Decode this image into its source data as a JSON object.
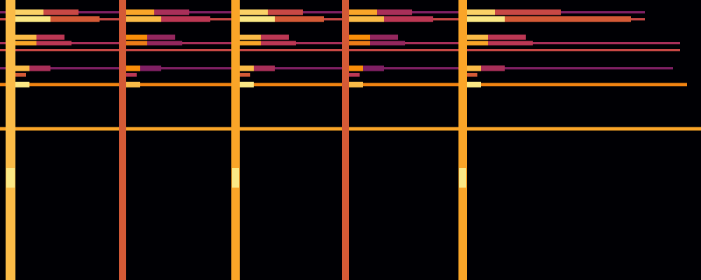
{
  "chart_data": {
    "type": "heatmap",
    "xlim": [
      0,
      100
    ],
    "ylim": [
      0,
      100
    ],
    "tick_labels": false,
    "color_range": [
      0,
      1
    ],
    "cells": [
      {
        "x0": 0,
        "x1": 100,
        "y0": 53.4,
        "y1": 54.6,
        "value": 0.8
      },
      {
        "x0": 0,
        "x1": 98,
        "y0": 69.2,
        "y1": 70.4,
        "value": 0.72
      },
      {
        "x0": 0,
        "x1": 96,
        "y0": 75.2,
        "y1": 76.0,
        "value": 0.35
      },
      {
        "x0": 0,
        "x1": 97,
        "y0": 81.7,
        "y1": 82.5,
        "value": 0.55
      },
      {
        "x0": 0,
        "x1": 97,
        "y0": 84.2,
        "y1": 85.0,
        "value": 0.45
      },
      {
        "x0": 0,
        "x1": 92,
        "y0": 92.7,
        "y1": 93.5,
        "value": 0.55
      },
      {
        "x0": 0,
        "x1": 92,
        "y0": 95.2,
        "y1": 96.0,
        "value": 0.35
      },
      {
        "x0": 2.2,
        "x1": 6.2,
        "y0": 94.6,
        "y1": 96.6,
        "value": 0.9
      },
      {
        "x0": 6.2,
        "x1": 11.2,
        "y0": 94.6,
        "y1": 96.6,
        "value": 0.55
      },
      {
        "x0": 2.2,
        "x1": 7.2,
        "y0": 92.2,
        "y1": 94.2,
        "value": 0.95
      },
      {
        "x0": 7.2,
        "x1": 14.2,
        "y0": 92.2,
        "y1": 94.2,
        "value": 0.6
      },
      {
        "x0": 2.2,
        "x1": 5.2,
        "y0": 85.8,
        "y1": 87.6,
        "value": 0.85
      },
      {
        "x0": 5.2,
        "x1": 9.2,
        "y0": 85.8,
        "y1": 87.6,
        "value": 0.5
      },
      {
        "x0": 2.2,
        "x1": 5.2,
        "y0": 83.8,
        "y1": 85.4,
        "value": 0.8
      },
      {
        "x0": 5.2,
        "x1": 10.2,
        "y0": 83.8,
        "y1": 85.4,
        "value": 0.5
      },
      {
        "x0": 2.2,
        "x1": 4.2,
        "y0": 74.6,
        "y1": 76.6,
        "value": 0.85
      },
      {
        "x0": 4.2,
        "x1": 7.2,
        "y0": 74.6,
        "y1": 76.6,
        "value": 0.45
      },
      {
        "x0": 2.2,
        "x1": 3.7,
        "y0": 72.6,
        "y1": 74.0,
        "value": 0.6
      },
      {
        "x0": 2.2,
        "x1": 4.2,
        "y0": 68.8,
        "y1": 70.8,
        "value": 0.95
      },
      {
        "x0": 18.0,
        "x1": 22.0,
        "y0": 94.6,
        "y1": 96.6,
        "value": 0.8
      },
      {
        "x0": 22.0,
        "x1": 27.0,
        "y0": 94.6,
        "y1": 96.6,
        "value": 0.45
      },
      {
        "x0": 18.0,
        "x1": 23.0,
        "y0": 92.2,
        "y1": 94.2,
        "value": 0.85
      },
      {
        "x0": 23.0,
        "x1": 30.0,
        "y0": 92.2,
        "y1": 94.2,
        "value": 0.5
      },
      {
        "x0": 18.0,
        "x1": 21.0,
        "y0": 85.8,
        "y1": 87.6,
        "value": 0.75
      },
      {
        "x0": 21.0,
        "x1": 25.0,
        "y0": 85.8,
        "y1": 87.6,
        "value": 0.4
      },
      {
        "x0": 18.0,
        "x1": 21.0,
        "y0": 83.8,
        "y1": 85.4,
        "value": 0.7
      },
      {
        "x0": 21.0,
        "x1": 26.0,
        "y0": 83.8,
        "y1": 85.4,
        "value": 0.4
      },
      {
        "x0": 18.0,
        "x1": 20.0,
        "y0": 74.6,
        "y1": 76.6,
        "value": 0.75
      },
      {
        "x0": 20.0,
        "x1": 23.0,
        "y0": 74.6,
        "y1": 76.6,
        "value": 0.35
      },
      {
        "x0": 18.0,
        "x1": 19.5,
        "y0": 72.6,
        "y1": 74.0,
        "value": 0.5
      },
      {
        "x0": 18.0,
        "x1": 20.0,
        "y0": 68.8,
        "y1": 70.8,
        "value": 0.85
      },
      {
        "x0": 34.2,
        "x1": 38.2,
        "y0": 94.6,
        "y1": 96.6,
        "value": 0.9
      },
      {
        "x0": 38.2,
        "x1": 43.2,
        "y0": 94.6,
        "y1": 96.6,
        "value": 0.55
      },
      {
        "x0": 34.2,
        "x1": 39.2,
        "y0": 92.2,
        "y1": 94.2,
        "value": 0.95
      },
      {
        "x0": 39.2,
        "x1": 46.2,
        "y0": 92.2,
        "y1": 94.2,
        "value": 0.6
      },
      {
        "x0": 34.2,
        "x1": 37.2,
        "y0": 85.8,
        "y1": 87.6,
        "value": 0.85
      },
      {
        "x0": 37.2,
        "x1": 41.2,
        "y0": 85.8,
        "y1": 87.6,
        "value": 0.5
      },
      {
        "x0": 34.2,
        "x1": 37.2,
        "y0": 83.8,
        "y1": 85.4,
        "value": 0.8
      },
      {
        "x0": 37.2,
        "x1": 42.2,
        "y0": 83.8,
        "y1": 85.4,
        "value": 0.5
      },
      {
        "x0": 34.2,
        "x1": 36.2,
        "y0": 74.6,
        "y1": 76.6,
        "value": 0.85
      },
      {
        "x0": 36.2,
        "x1": 39.2,
        "y0": 74.6,
        "y1": 76.6,
        "value": 0.45
      },
      {
        "x0": 34.2,
        "x1": 35.7,
        "y0": 72.6,
        "y1": 74.0,
        "value": 0.6
      },
      {
        "x0": 34.2,
        "x1": 36.2,
        "y0": 68.8,
        "y1": 70.8,
        "value": 0.95
      },
      {
        "x0": 49.8,
        "x1": 53.8,
        "y0": 94.6,
        "y1": 96.6,
        "value": 0.8
      },
      {
        "x0": 53.8,
        "x1": 58.8,
        "y0": 94.6,
        "y1": 96.6,
        "value": 0.45
      },
      {
        "x0": 49.8,
        "x1": 54.8,
        "y0": 92.2,
        "y1": 94.2,
        "value": 0.85
      },
      {
        "x0": 54.8,
        "x1": 61.8,
        "y0": 92.2,
        "y1": 94.2,
        "value": 0.5
      },
      {
        "x0": 49.8,
        "x1": 52.8,
        "y0": 85.8,
        "y1": 87.6,
        "value": 0.75
      },
      {
        "x0": 52.8,
        "x1": 56.8,
        "y0": 85.8,
        "y1": 87.6,
        "value": 0.4
      },
      {
        "x0": 49.8,
        "x1": 52.8,
        "y0": 83.8,
        "y1": 85.4,
        "value": 0.7
      },
      {
        "x0": 52.8,
        "x1": 57.8,
        "y0": 83.8,
        "y1": 85.4,
        "value": 0.4
      },
      {
        "x0": 49.8,
        "x1": 51.8,
        "y0": 74.6,
        "y1": 76.6,
        "value": 0.75
      },
      {
        "x0": 51.8,
        "x1": 54.8,
        "y0": 74.6,
        "y1": 76.6,
        "value": 0.35
      },
      {
        "x0": 49.8,
        "x1": 51.3,
        "y0": 72.6,
        "y1": 74.0,
        "value": 0.5
      },
      {
        "x0": 49.8,
        "x1": 51.8,
        "y0": 68.8,
        "y1": 70.8,
        "value": 0.85
      },
      {
        "x0": 66.6,
        "x1": 70.6,
        "y0": 94.6,
        "y1": 96.6,
        "value": 0.9
      },
      {
        "x0": 70.6,
        "x1": 80.0,
        "y0": 94.6,
        "y1": 96.6,
        "value": 0.55
      },
      {
        "x0": 66.6,
        "x1": 72.0,
        "y0": 92.2,
        "y1": 94.2,
        "value": 0.95
      },
      {
        "x0": 72.0,
        "x1": 90.0,
        "y0": 92.2,
        "y1": 94.2,
        "value": 0.6
      },
      {
        "x0": 66.6,
        "x1": 69.6,
        "y0": 85.8,
        "y1": 87.6,
        "value": 0.85
      },
      {
        "x0": 69.6,
        "x1": 75.0,
        "y0": 85.8,
        "y1": 87.6,
        "value": 0.5
      },
      {
        "x0": 66.6,
        "x1": 69.6,
        "y0": 83.8,
        "y1": 85.4,
        "value": 0.8
      },
      {
        "x0": 69.6,
        "x1": 76.0,
        "y0": 83.8,
        "y1": 85.4,
        "value": 0.5
      },
      {
        "x0": 66.6,
        "x1": 68.6,
        "y0": 74.6,
        "y1": 76.6,
        "value": 0.85
      },
      {
        "x0": 68.6,
        "x1": 72.0,
        "y0": 74.6,
        "y1": 76.6,
        "value": 0.45
      },
      {
        "x0": 66.6,
        "x1": 68.1,
        "y0": 72.6,
        "y1": 74.0,
        "value": 0.6
      },
      {
        "x0": 66.6,
        "x1": 68.6,
        "y0": 68.8,
        "y1": 70.8,
        "value": 0.95
      },
      {
        "x0": 0.8,
        "x1": 2.2,
        "y0": 0,
        "y1": 100,
        "value": 0.85
      },
      {
        "x0": 17.0,
        "x1": 18.0,
        "y0": 0,
        "y1": 100,
        "value": 0.6
      },
      {
        "x0": 33.0,
        "x1": 34.2,
        "y0": 0,
        "y1": 100,
        "value": 0.8
      },
      {
        "x0": 48.8,
        "x1": 49.8,
        "y0": 0,
        "y1": 100,
        "value": 0.6
      },
      {
        "x0": 65.4,
        "x1": 66.6,
        "y0": 0,
        "y1": 100,
        "value": 0.8
      },
      {
        "x0": 0.9,
        "x1": 2.1,
        "y0": 33,
        "y1": 40,
        "value": 0.95
      },
      {
        "x0": 33.1,
        "x1": 34.1,
        "y0": 33,
        "y1": 40,
        "value": 0.95
      },
      {
        "x0": 65.5,
        "x1": 66.5,
        "y0": 33,
        "y1": 40,
        "value": 0.95
      }
    ]
  }
}
